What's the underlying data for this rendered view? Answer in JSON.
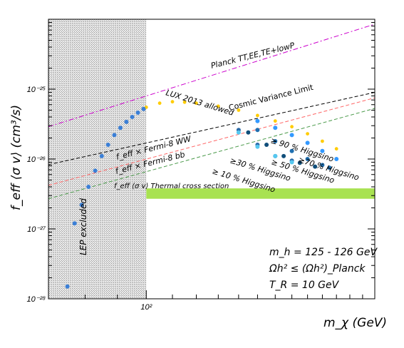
{
  "chart_data": {
    "type": "scatter",
    "log_x": true,
    "log_y": true,
    "xlim": [
      70,
      230
    ],
    "ylim": [
      1e-28,
      1e-24
    ],
    "xlabel": "m_χ (GeV)",
    "ylabel": "f_eff ⟨σ v⟩ (cm³/s)",
    "x_tick_labels": [
      {
        "value": 100,
        "label": "10²"
      }
    ],
    "y_tick_labels": [
      {
        "value": 1e-28,
        "label": "10⁻²⁸"
      },
      {
        "value": 1e-27,
        "label": "10⁻²⁷"
      },
      {
        "value": 1e-26,
        "label": "10⁻²⁶"
      },
      {
        "value": 1e-25,
        "label": "10⁻²⁵"
      }
    ],
    "grid": false,
    "legend": "none",
    "excluded_region": {
      "label": "LEP excluded",
      "x_range": [
        70,
        100
      ]
    },
    "reference_lines": [
      {
        "name": "Planck TT,EE,TE+lowP",
        "color": "#cc00cc",
        "style": "dash-dot",
        "x": [
          70,
          230
        ],
        "y": [
          2.9e-26,
          8.5e-25
        ]
      },
      {
        "name": "Cosmic Variance Limit",
        "color": "#000000",
        "style": "dashed",
        "x": [
          70,
          230
        ],
        "y": [
          8.3e-27,
          9e-26
        ]
      },
      {
        "name": "f_eff × Fermi-8 WW",
        "color": "#ff6666",
        "style": "dashed",
        "x": [
          70,
          230
        ],
        "y": [
          4.2e-27,
          7.5e-26
        ]
      },
      {
        "name": "f_eff × Fermi-8 bb",
        "color": "#4a9a4a",
        "style": "dashed",
        "x": [
          70,
          230
        ],
        "y": [
          2.7e-27,
          5.3e-26
        ]
      }
    ],
    "thermal_band": {
      "name": "f_eff ⟨σ v⟩ Thermal cross section",
      "color": "#99dd33",
      "x_from": 100,
      "y_range": [
        2.7e-27,
        3.8e-27
      ]
    },
    "series": [
      {
        "name": "LUX 2013 allowed",
        "color": "#ffcc00",
        "x": [
          100,
          105,
          110,
          115,
          120,
          130,
          140,
          150,
          160,
          170,
          180,
          190,
          200
        ],
        "y": [
          5.5e-26,
          6.3e-26,
          6.6e-26,
          6.5e-26,
          6.3e-26,
          5.7e-26,
          5e-26,
          4.2e-26,
          3.5e-26,
          2.9e-26,
          2.3e-26,
          1.8e-26,
          1.4e-26
        ]
      },
      {
        "name": "≥ 90 % Higgsino",
        "color": "#3399ff",
        "x": [
          150,
          160,
          170,
          180,
          190,
          200
        ],
        "y": [
          3.5e-26,
          2.8e-26,
          2.2e-26,
          1.7e-26,
          1.3e-26,
          1e-26
        ]
      },
      {
        "name": "≥70 % Higgsino",
        "color": "#1f6fb0",
        "x": [
          150,
          160,
          170,
          180,
          190,
          195
        ],
        "y": [
          2.6e-26,
          1.8e-26,
          1.3e-26,
          1e-26,
          8.2e-27,
          7.5e-27
        ]
      },
      {
        "name": "≥ 50 % Higgsino",
        "color": "#104e7a",
        "x": [
          145,
          155,
          165,
          175,
          185
        ],
        "y": [
          2.4e-26,
          1.6e-26,
          1.1e-26,
          8.8e-27,
          7.8e-27
        ]
      },
      {
        "name": "≥30 % Higgsino",
        "color": "#2a6aa8",
        "x": [
          140,
          150,
          160,
          170
        ],
        "y": [
          2.6e-26,
          1.6e-26,
          1.1e-26,
          9.5e-27
        ]
      },
      {
        "name": "≥ 10 % Higgsino",
        "color": "#55c8f0",
        "x": [
          140,
          150,
          160,
          170
        ],
        "y": [
          2.4e-26,
          1.5e-26,
          1.1e-26,
          9e-27
        ]
      },
      {
        "name": "",
        "color": "#3b7fd6",
        "x": [
          75,
          77,
          79,
          81,
          83,
          85,
          87,
          89,
          91,
          93,
          95,
          97,
          99
        ],
        "y": [
          1.5e-28,
          1.2e-27,
          2.2e-27,
          4e-27,
          6.8e-27,
          1.1e-26,
          1.6e-26,
          2.2e-26,
          2.8e-26,
          3.4e-26,
          4e-26,
          4.6e-26,
          5.2e-26
        ]
      }
    ],
    "annotations": [
      {
        "text": "Planck TT,EE,TE+lowP",
        "color": "#cc00cc"
      },
      {
        "text": "LUX 2013 allowed",
        "color": "#ffcc00"
      },
      {
        "text": "Cosmic Variance Limit",
        "color": "#000000"
      },
      {
        "text": "f_eff × Fermi-8 WW",
        "color": "#ff6666"
      },
      {
        "text": "f_eff × Fermi-8 bb",
        "color": "#4a9a4a"
      },
      {
        "text": "≥ 90 % Higgsino",
        "color": "#3399ff"
      },
      {
        "text": "≥70 % Higgsino",
        "color": "#1f6fb0"
      },
      {
        "text": "≥ 50 % Higgsino",
        "color": "#104e7a"
      },
      {
        "text": "≥30 % Higgsino",
        "color": "#2a6aa8"
      },
      {
        "text": "≥ 10 % Higgsino",
        "color": "#55c8f0"
      },
      {
        "text": "f_eff ⟨σ v⟩  Thermal cross section",
        "color": "#4a7a10"
      },
      {
        "text": "LEP excluded",
        "color": "#333333"
      }
    ],
    "info_text": [
      "m_h = 125 - 126 GeV",
      "Ωh² ≤ (Ωh²)_Planck",
      "T_R = 10 GeV"
    ]
  }
}
